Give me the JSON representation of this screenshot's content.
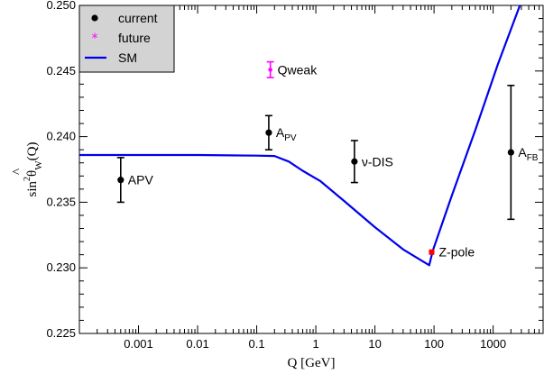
{
  "chart_data": {
    "type": "scatter",
    "x_scale": "log",
    "xlim": [
      0.0001,
      7000
    ],
    "ylim": [
      0.225,
      0.25
    ],
    "x_ticks": [
      0.001,
      0.01,
      0.1,
      1,
      10,
      100,
      1000
    ],
    "x_tick_labels": [
      "0.001",
      "0.01",
      "0.1",
      "1",
      "10",
      "100",
      "1000"
    ],
    "y_ticks": [
      0.225,
      0.23,
      0.235,
      0.24,
      0.245,
      0.25
    ],
    "y_tick_labels": [
      "0.225",
      "0.230",
      "0.235",
      "0.240",
      "0.245",
      "0.250"
    ],
    "xlabel": "Q [GeV]",
    "ylabel": {
      "base": "sin",
      "sup": "2",
      "theta": "θ",
      "hat": "^",
      "sub": "W",
      "arg": "(Q)"
    },
    "legend": {
      "placement": "top-left",
      "entries": [
        {
          "label": "current",
          "marker": "dot",
          "color": "#000000"
        },
        {
          "label": "future",
          "marker": "star",
          "color": "#ff00ff"
        },
        {
          "label": "SM",
          "marker": "line",
          "color": "#0000ee"
        }
      ]
    },
    "sm_curve": {
      "name": "SM",
      "color": "#0000ee",
      "points": [
        [
          0.0001,
          0.2386
        ],
        [
          0.01,
          0.2386
        ],
        [
          0.1,
          0.23855
        ],
        [
          0.2,
          0.23852
        ],
        [
          0.35,
          0.2381
        ],
        [
          0.6,
          0.2374
        ],
        [
          1.2,
          0.2366
        ],
        [
          3,
          0.2351
        ],
        [
          10,
          0.2331
        ],
        [
          30,
          0.2314
        ],
        [
          83,
          0.2302
        ],
        [
          95,
          0.2313
        ],
        [
          200,
          0.2355
        ],
        [
          500,
          0.2405
        ],
        [
          1200,
          0.2455
        ],
        [
          3000,
          0.2503
        ]
      ]
    },
    "series": [
      {
        "name": "current",
        "color": "#000000",
        "points": [
          {
            "x": 0.0005,
            "y": 0.2367,
            "err": 0.0017,
            "label": "APV"
          },
          {
            "x": 0.16,
            "y": 0.2403,
            "err": 0.0013,
            "label": "A",
            "label_sub": "PV"
          },
          {
            "x": 4.5,
            "y": 0.2381,
            "err": 0.0016,
            "label": "ν-DIS"
          },
          {
            "x": 2000,
            "y": 0.2388,
            "err": 0.0051,
            "label": "A",
            "label_sub": "FB"
          }
        ]
      },
      {
        "name": "future",
        "color": "#ff00ff",
        "points": [
          {
            "x": 0.17,
            "y": 0.2451,
            "err": 0.0006,
            "label": "Qweak"
          }
        ]
      },
      {
        "name": "Z-pole",
        "color": "#ff0000",
        "points": [
          {
            "x": 91.2,
            "y": 0.2312,
            "err": 0.0001,
            "label": "Z-pole"
          }
        ]
      }
    ]
  }
}
